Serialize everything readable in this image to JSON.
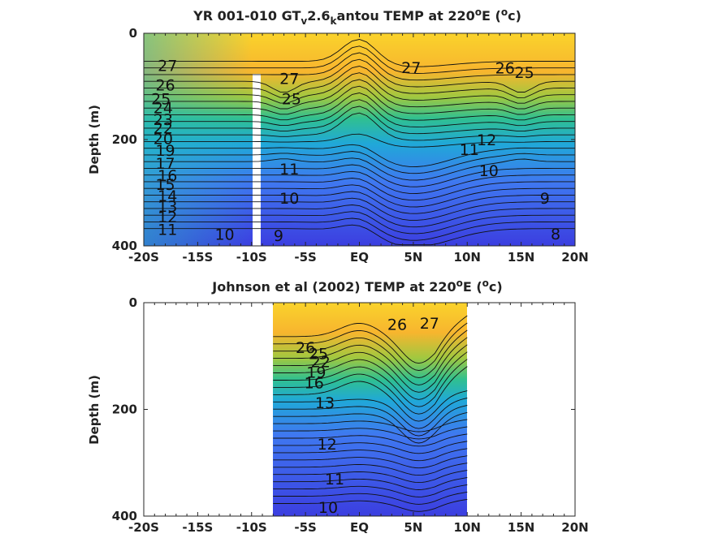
{
  "chart_data": [
    {
      "type": "contour",
      "title_parts": [
        "YR 001-010 GT",
        "v",
        "2.6",
        "k",
        "antou TEMP at 220",
        "o",
        "E (",
        "o",
        "c)"
      ],
      "ylabel": "Depth (m)",
      "xlim": [
        -20,
        20
      ],
      "ylim": [
        400,
        0
      ],
      "y_inverted": true,
      "x_tick_values": [
        -20,
        -15,
        -10,
        -5,
        0,
        5,
        10,
        15,
        20
      ],
      "x_tick_labels": [
        "-20S",
        "-15S",
        "-10S",
        "-5S",
        "EQ",
        "5N",
        "10N",
        "15N",
        "20N"
      ],
      "y_tick_values": [
        0,
        200,
        400
      ],
      "y_tick_labels": [
        "0",
        "200",
        "400"
      ],
      "data_extent_x": [
        -20,
        20
      ],
      "mask_gap": {
        "lat": -10,
        "depth_from": 80,
        "depth_to": 400
      },
      "colormap": [
        "#3b3ee0",
        "#3f78f0",
        "#20a8d8",
        "#30c090",
        "#a0c840",
        "#f7b52e",
        "#fad32c"
      ],
      "contour_labels": [
        {
          "text": "27",
          "lat": -17.8,
          "depth": 60
        },
        {
          "text": "26",
          "lat": -18.0,
          "depth": 97
        },
        {
          "text": "25",
          "lat": -18.4,
          "depth": 123
        },
        {
          "text": "24",
          "lat": -18.2,
          "depth": 140
        },
        {
          "text": "23",
          "lat": -18.2,
          "depth": 162
        },
        {
          "text": "22",
          "lat": -18.2,
          "depth": 178
        },
        {
          "text": "20",
          "lat": -18.2,
          "depth": 198
        },
        {
          "text": "19",
          "lat": -18.0,
          "depth": 220
        },
        {
          "text": "17",
          "lat": -18.0,
          "depth": 244
        },
        {
          "text": "16",
          "lat": -17.8,
          "depth": 267
        },
        {
          "text": "15",
          "lat": -18.0,
          "depth": 284
        },
        {
          "text": "14",
          "lat": -17.8,
          "depth": 305
        },
        {
          "text": "13",
          "lat": -17.8,
          "depth": 325
        },
        {
          "text": "12",
          "lat": -17.8,
          "depth": 345
        },
        {
          "text": "11",
          "lat": -17.8,
          "depth": 369
        },
        {
          "text": "10",
          "lat": -12.5,
          "depth": 378
        },
        {
          "text": "9",
          "lat": -7.5,
          "depth": 380
        },
        {
          "text": "27",
          "lat": -6.5,
          "depth": 85
        },
        {
          "text": "25",
          "lat": -6.3,
          "depth": 123
        },
        {
          "text": "11",
          "lat": -6.5,
          "depth": 255
        },
        {
          "text": "10",
          "lat": -6.5,
          "depth": 310
        },
        {
          "text": "27",
          "lat": 4.8,
          "depth": 64
        },
        {
          "text": "26",
          "lat": 13.5,
          "depth": 65
        },
        {
          "text": "25",
          "lat": 15.3,
          "depth": 73
        },
        {
          "text": "11",
          "lat": 10.2,
          "depth": 218
        },
        {
          "text": "12",
          "lat": 11.8,
          "depth": 200
        },
        {
          "text": "10",
          "lat": 12.0,
          "depth": 258
        },
        {
          "text": "9",
          "lat": 17.2,
          "depth": 310
        },
        {
          "text": "8",
          "lat": 18.2,
          "depth": 377
        }
      ]
    },
    {
      "type": "contour",
      "title_parts": [
        "Johnson et al (2002) TEMP at 220",
        "o",
        "E (",
        "o",
        "c)"
      ],
      "ylabel": "Depth (m)",
      "xlim": [
        -20,
        20
      ],
      "ylim": [
        400,
        0
      ],
      "y_inverted": true,
      "x_tick_values": [
        -20,
        -15,
        -10,
        -5,
        0,
        5,
        10,
        15,
        20
      ],
      "x_tick_labels": [
        "-20S",
        "-15S",
        "-10S",
        "-5S",
        "EQ",
        "5N",
        "10N",
        "15N",
        "20N"
      ],
      "y_tick_values": [
        0,
        200,
        400
      ],
      "y_tick_labels": [
        "0",
        "200",
        "400"
      ],
      "data_extent_x": [
        -8,
        10
      ],
      "colormap": [
        "#3b3ee0",
        "#3f78f0",
        "#20a8d8",
        "#30c090",
        "#a0c840",
        "#f7b52e",
        "#fad32c"
      ],
      "contour_labels": [
        {
          "text": "26",
          "lat": 3.5,
          "depth": 40
        },
        {
          "text": "27",
          "lat": 6.5,
          "depth": 38
        },
        {
          "text": "26",
          "lat": -5.0,
          "depth": 84
        },
        {
          "text": "25",
          "lat": -3.8,
          "depth": 95
        },
        {
          "text": "22",
          "lat": -3.6,
          "depth": 110
        },
        {
          "text": "19",
          "lat": -4.0,
          "depth": 130
        },
        {
          "text": "16",
          "lat": -4.2,
          "depth": 150
        },
        {
          "text": "13",
          "lat": -3.2,
          "depth": 187
        },
        {
          "text": "12",
          "lat": -3.0,
          "depth": 265
        },
        {
          "text": "11",
          "lat": -2.3,
          "depth": 330
        },
        {
          "text": "10",
          "lat": -2.9,
          "depth": 383
        }
      ]
    }
  ]
}
